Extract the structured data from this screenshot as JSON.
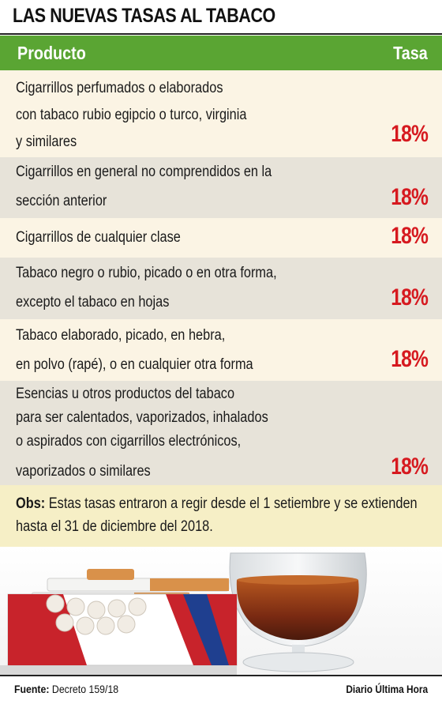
{
  "title": "LAS NUEVAS TASAS AL TABACO",
  "header": {
    "product_label": "Producto",
    "rate_label": "Tasa"
  },
  "rows": [
    {
      "lines": [
        "Cigarrillos perfumados o elaborados",
        "con tabaco rubio egipcio o turco, virginia",
        "y similares"
      ],
      "rate": "18%"
    },
    {
      "lines": [
        "Cigarrillos en general no comprendidos en la",
        "sección anterior"
      ],
      "rate": "18%"
    },
    {
      "lines": [
        "Cigarrillos de cualquier clase"
      ],
      "rate": "18%"
    },
    {
      "lines": [
        "Tabaco negro o rubio, picado o en otra forma,",
        "excepto el tabaco en hojas"
      ],
      "rate": "18%"
    },
    {
      "lines": [
        "Tabaco elaborado, picado, en hebra,",
        "en polvo (rapé), o en cualquier otra forma"
      ],
      "rate": "18%"
    },
    {
      "lines": [
        "Esencias u otros productos del tabaco",
        "para ser calentados, vaporizados, inhalados",
        "o aspirados con cigarrillos electrónicos,",
        "vaporizados o similares"
      ],
      "rate": "18%"
    }
  ],
  "obs": {
    "label": "Obs:",
    "line1": "Estas tasas entraron a regir desde el 1 setiembre y se extienden",
    "line2": "hasta el 31 de diciembre del 2018."
  },
  "footer": {
    "source_label": "Fuente:",
    "source_value": "Decreto 159/18",
    "credit": "Diario Última Hora"
  },
  "colors": {
    "header_green": "#5aa533",
    "rate_red": "#d6191f",
    "row_light": "#fbf4e4",
    "row_dark": "#e7e3d9",
    "obs_bg": "#f6efc6"
  }
}
